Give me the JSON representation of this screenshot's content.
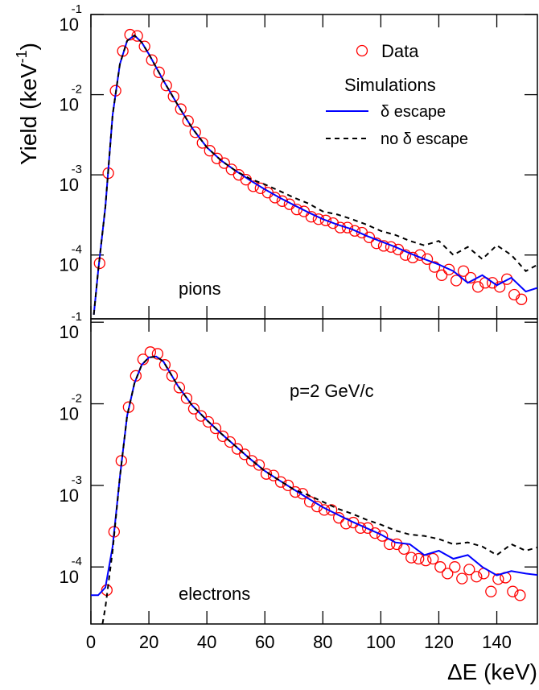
{
  "chart_data": [
    {
      "type": "line",
      "log_y": true,
      "xlim": [
        0,
        154
      ],
      "ylim": [
        1.6e-05,
        0.1
      ],
      "xticks": [
        0,
        20,
        40,
        60,
        80,
        100,
        120,
        140
      ],
      "xtick_labels": false,
      "yticks": [
        {
          "value": 0.1,
          "label": "10",
          "sup": "-1"
        },
        {
          "value": 0.01,
          "label": "10",
          "sup": "-2"
        },
        {
          "value": 0.001,
          "label": "10",
          "sup": "-3"
        },
        {
          "value": 0.0001,
          "label": "10",
          "sup": "-4"
        }
      ],
      "ylabel": {
        "text": "Yield (keV",
        "sup": "-1",
        "end": ")"
      },
      "annotation": "pions",
      "legend_subtitle": "Simulations",
      "series": [
        {
          "name": "Data",
          "style": "circle",
          "color": "#ff0000",
          "x": [
            3,
            6,
            8.5,
            11,
            13.5,
            16,
            18.5,
            21,
            23.5,
            26,
            28.5,
            31,
            33.5,
            36,
            38.5,
            41,
            43.5,
            46,
            48.5,
            51,
            53.5,
            56,
            58.5,
            61,
            63.5,
            66,
            68.5,
            71,
            73.5,
            76,
            78.5,
            81,
            83.5,
            86,
            88.5,
            91,
            93.5,
            96,
            98.5,
            101,
            103.5,
            106,
            108.5,
            111,
            113.5,
            116,
            118.5,
            121,
            123.5,
            126,
            128.5,
            131,
            133.5,
            136,
            138.5,
            141,
            143.5,
            146,
            148.5
          ],
          "values": [
            7.9e-05,
            0.00105,
            0.0112,
            0.035,
            0.056,
            0.054,
            0.04,
            0.027,
            0.019,
            0.013,
            0.0095,
            0.0066,
            0.0047,
            0.0034,
            0.0025,
            0.002,
            0.0016,
            0.0014,
            0.00117,
            0.001,
            0.00087,
            0.00072,
            0.00068,
            0.0006,
            0.00052,
            0.00047,
            0.00043,
            0.00037,
            0.00035,
            0.0003,
            0.00028,
            0.00027,
            0.00025,
            0.00022,
            0.00022,
            0.0002,
            0.00019,
            0.000166,
            0.00014,
            0.00013,
            0.000126,
            0.000117,
            0.0001,
            9.3e-05,
            0.0001,
            8.9e-05,
            7.1e-05,
            5.6e-05,
            6.6e-05,
            4.8e-05,
            6.3e-05,
            5.2e-05,
            4e-05,
            4.5e-05,
            4.5e-05,
            4e-05,
            5e-05,
            3.2e-05,
            2.8e-05
          ]
        },
        {
          "name": "δ escape",
          "style": "solid",
          "color": "#0000ff",
          "x": [
            1,
            2.5,
            5,
            7.5,
            10,
            12.5,
            15,
            17.5,
            20,
            25,
            30,
            35,
            40,
            45,
            50,
            55,
            60,
            65,
            70,
            75,
            80,
            85,
            90,
            95,
            100,
            105,
            110,
            115,
            120,
            125,
            130,
            135,
            140,
            145,
            150,
            155
          ],
          "values": [
            1.8e-05,
            6.3e-05,
            0.0004,
            0.0056,
            0.024,
            0.047,
            0.055,
            0.045,
            0.032,
            0.015,
            0.0074,
            0.0038,
            0.0022,
            0.0015,
            0.00112,
            0.00085,
            0.00066,
            0.00052,
            0.00042,
            0.00034,
            0.00028,
            0.00024,
            0.00021,
            0.000174,
            0.000148,
            0.000126,
            0.000105,
            8.9e-05,
            7.6e-05,
            6.3e-05,
            4.5e-05,
            5.6e-05,
            4.2e-05,
            5.2e-05,
            3.5e-05,
            4e-05
          ]
        },
        {
          "name": "no δ escape",
          "style": "dashed",
          "color": "#000000",
          "x": [
            1,
            2.5,
            5,
            7.5,
            10,
            12.5,
            15,
            17.5,
            20,
            25,
            30,
            35,
            40,
            45,
            50,
            55,
            60,
            65,
            70,
            75,
            80,
            85,
            90,
            95,
            100,
            105,
            110,
            115,
            120,
            125,
            130,
            135,
            140,
            145,
            150,
            155
          ],
          "values": [
            1.8e-05,
            6.3e-05,
            0.0004,
            0.0056,
            0.024,
            0.047,
            0.055,
            0.045,
            0.032,
            0.015,
            0.0074,
            0.0038,
            0.0022,
            0.0015,
            0.00112,
            0.00089,
            0.00076,
            0.00063,
            0.00052,
            0.00044,
            0.00035,
            0.00032,
            0.00028,
            0.00024,
            0.0002,
            0.000178,
            0.00015,
            0.000132,
            0.00015,
            0.0001,
            0.000126,
            8.9e-05,
            0.000132,
            0.0001,
            6.3e-05,
            7.9e-05
          ]
        }
      ]
    },
    {
      "type": "line",
      "log_y": true,
      "xlim": [
        0,
        154
      ],
      "ylim": [
        2e-05,
        0.11
      ],
      "xticks": [
        0,
        20,
        40,
        60,
        80,
        100,
        120,
        140
      ],
      "xtick_labels": true,
      "yticks": [
        {
          "value": 0.1,
          "label": "10",
          "sup": "-1"
        },
        {
          "value": 0.01,
          "label": "10",
          "sup": "-2"
        },
        {
          "value": 0.001,
          "label": "10",
          "sup": "-3"
        },
        {
          "value": 0.0001,
          "label": "10",
          "sup": "-4"
        }
      ],
      "xlabel": "ΔE (keV)",
      "annotation": "electrons",
      "annotation2": "p=2 GeV/c",
      "series": [
        {
          "style": "circle",
          "color": "#ff0000",
          "x": [
            5.5,
            8,
            10.5,
            13,
            15.5,
            18,
            20.5,
            23,
            25.5,
            28,
            30.5,
            33,
            35.5,
            38,
            40.5,
            43,
            45.5,
            48,
            50.5,
            53,
            55.5,
            58,
            60.5,
            63,
            65.5,
            68,
            70.5,
            73,
            75.5,
            78,
            80.5,
            83,
            85.5,
            88,
            90.5,
            93,
            95.5,
            98,
            100.5,
            103,
            105.5,
            108,
            110.5,
            113,
            115.5,
            118,
            120.5,
            123,
            125.5,
            128,
            130.5,
            133,
            135.5,
            138,
            140.5,
            143,
            145.5,
            148
          ],
          "values": [
            5.2e-05,
            0.00027,
            0.002,
            0.0091,
            0.022,
            0.035,
            0.043,
            0.041,
            0.03,
            0.022,
            0.0158,
            0.0117,
            0.0087,
            0.0071,
            0.006,
            0.005,
            0.004,
            0.0034,
            0.0028,
            0.0024,
            0.002,
            0.00178,
            0.00138,
            0.00132,
            0.0011,
            0.001,
            0.00083,
            0.00079,
            0.00063,
            0.00055,
            0.0005,
            0.0005,
            0.0004,
            0.00034,
            0.00035,
            0.0003,
            0.0003,
            0.00026,
            0.00024,
            0.00019,
            0.00019,
            0.000166,
            0.00013,
            0.000126,
            0.00012,
            0.000126,
            0.0001,
            8.3e-05,
            0.0001,
            7.2e-05,
            9.3e-05,
            7.6e-05,
            8.3e-05,
            5e-05,
            7.1e-05,
            7.4e-05,
            5e-05,
            4.5e-05
          ]
        },
        {
          "style": "solid",
          "color": "#0000ff",
          "x": [
            0,
            2.5,
            5,
            7.5,
            10,
            12.5,
            15,
            17.5,
            20,
            22.5,
            25,
            30,
            35,
            40,
            45,
            50,
            55,
            60,
            65,
            70,
            75,
            80,
            85,
            90,
            95,
            100,
            105,
            110,
            115,
            120,
            125,
            130,
            135,
            140,
            145,
            150,
            155
          ],
          "values": [
            4.5e-05,
            4.5e-05,
            5.6e-05,
            0.000178,
            0.00126,
            0.0071,
            0.0178,
            0.03,
            0.037,
            0.038,
            0.033,
            0.0166,
            0.0095,
            0.0063,
            0.0043,
            0.003,
            0.0021,
            0.0015,
            0.00115,
            0.00089,
            0.00069,
            0.00054,
            0.00044,
            0.00036,
            0.0003,
            0.00025,
            0.0002,
            0.00019,
            0.00014,
            0.000158,
            0.000126,
            0.00014,
            0.0001,
            7.9e-05,
            8.9e-05,
            8.3e-05,
            7.9e-05
          ]
        },
        {
          "style": "dashed",
          "color": "#000000",
          "x": [
            4,
            5,
            7.5,
            10,
            12.5,
            15,
            17.5,
            20,
            22.5,
            25,
            30,
            35,
            40,
            45,
            50,
            55,
            60,
            65,
            70,
            75,
            80,
            85,
            90,
            95,
            100,
            105,
            110,
            115,
            120,
            125,
            130,
            135,
            140,
            145,
            150,
            155
          ],
          "values": [
            2e-05,
            3.2e-05,
            0.000158,
            0.00126,
            0.0071,
            0.0178,
            0.03,
            0.037,
            0.038,
            0.033,
            0.0166,
            0.0095,
            0.0063,
            0.0043,
            0.003,
            0.0021,
            0.0015,
            0.00115,
            0.00089,
            0.00076,
            0.00063,
            0.00052,
            0.00045,
            0.00038,
            0.00033,
            0.00028,
            0.00025,
            0.00024,
            0.00022,
            0.00019,
            0.0002,
            0.000178,
            0.00014,
            0.00019,
            0.000158,
            0.000178
          ]
        }
      ]
    }
  ]
}
